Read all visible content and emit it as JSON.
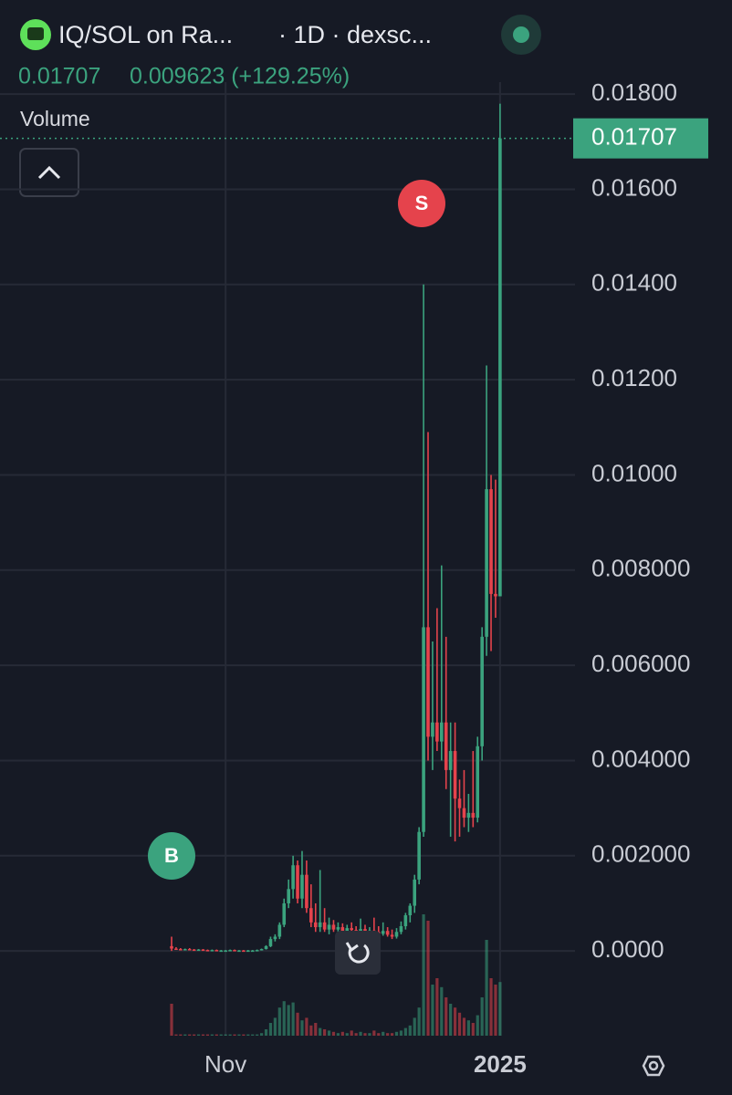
{
  "chart_data": {
    "type": "candlestick",
    "title": "IQ/SOL on Ra...",
    "interval": "· 1D · dexsc...",
    "subtitle_price": "0.01707",
    "subtitle_change": "0.009623 (+129.25%)",
    "volume_label": "Volume",
    "last_price": 0.01707,
    "markers": [
      "B",
      "S"
    ],
    "colors": {
      "up": "#3ba37e",
      "down": "#e5434c"
    },
    "grid": true,
    "ylim": [
      -0.00178,
      0.01806
    ],
    "yticks": [
      {
        "value": 0,
        "label": "0.0000"
      },
      {
        "value": 0.002,
        "label": "0.002000"
      },
      {
        "value": 0.004,
        "label": "0.004000"
      },
      {
        "value": 0.006,
        "label": "0.006000"
      },
      {
        "value": 0.008,
        "label": "0.008000"
      },
      {
        "value": 0.01,
        "label": "0.01000"
      },
      {
        "value": 0.012,
        "label": "0.01200"
      },
      {
        "value": 0.014,
        "label": "0.01400"
      },
      {
        "value": 0.016,
        "label": "0.01600"
      },
      {
        "value": 0.018,
        "label": "0.01800"
      }
    ],
    "categories": [
      null,
      null,
      null,
      null,
      null,
      null,
      null,
      null,
      null,
      null,
      null,
      null,
      "Nov",
      null,
      null,
      null,
      null,
      null,
      null,
      null,
      null,
      null,
      null,
      null,
      null,
      null,
      null,
      null,
      null,
      null,
      null,
      null,
      null,
      null,
      null,
      null,
      null,
      null,
      null,
      null,
      null,
      null,
      null,
      null,
      null,
      null,
      null,
      null,
      null,
      null,
      null,
      null,
      null,
      null,
      null,
      null,
      null,
      null,
      null,
      null,
      null,
      null,
      null,
      null,
      null,
      null,
      null,
      null,
      null,
      null,
      null,
      null,
      null,
      "2025"
    ],
    "open": [
      0.0001,
      5e-05,
      4e-05,
      3e-05,
      4e-05,
      3e-05,
      2e-05,
      3e-05,
      2e-05,
      1e-05,
      2e-05,
      1e-05,
      1e-05,
      1e-05,
      2e-05,
      1e-05,
      1e-05,
      0.0,
      1e-05,
      1e-05,
      2e-05,
      4e-05,
      0.0001,
      0.00025,
      0.0003,
      0.00055,
      0.001,
      0.0013,
      0.0018,
      0.0011,
      0.0016,
      0.0009,
      0.0006,
      0.0005,
      0.0006,
      0.00045,
      0.00055,
      0.00045,
      0.0005,
      0.00042,
      0.00048,
      0.00044,
      0.0004,
      0.00046,
      0.00041,
      0.00043,
      0.0004,
      0.00036,
      0.00042,
      0.00034,
      0.0003,
      0.0004,
      0.00052,
      0.00075,
      0.00095,
      0.0015,
      0.0025,
      0.0068,
      0.0045,
      0.0048,
      0.0044,
      0.0048,
      0.0038,
      0.0042,
      0.0032,
      0.003,
      0.0028,
      0.0029,
      0.0028,
      0.0043,
      0.0066,
      0.0097,
      0.0075,
      0.00745
    ],
    "high": [
      0.0003,
      8e-05,
      6e-05,
      5e-05,
      6e-05,
      4e-05,
      4e-05,
      4e-05,
      3e-05,
      3e-05,
      3e-05,
      2e-05,
      2e-05,
      3e-05,
      3e-05,
      2e-05,
      2e-05,
      2e-05,
      2e-05,
      3e-05,
      5e-05,
      0.00012,
      0.0003,
      0.00035,
      0.0006,
      0.0011,
      0.0015,
      0.002,
      0.0019,
      0.0021,
      0.0019,
      0.0014,
      0.001,
      0.0017,
      0.0009,
      0.0007,
      0.00065,
      0.0006,
      0.00058,
      0.00055,
      0.0006,
      0.00052,
      0.00068,
      0.00055,
      0.0005,
      0.0007,
      0.00052,
      0.0006,
      0.0005,
      0.00045,
      0.00048,
      0.00062,
      0.0008,
      0.001,
      0.0016,
      0.0026,
      0.014,
      0.0109,
      0.0065,
      0.0072,
      0.0081,
      0.0066,
      0.0048,
      0.0048,
      0.0036,
      0.0038,
      0.0033,
      0.0042,
      0.0045,
      0.0068,
      0.0123,
      0.01,
      0.0099,
      0.0178
    ],
    "low": [
      0.0,
      3e-05,
      2e-05,
      2e-05,
      2e-05,
      1e-05,
      1e-05,
      1e-05,
      0.0,
      0.0,
      0.0,
      0.0,
      0.0,
      0.0,
      0.0,
      0.0,
      0.0,
      -1e-05,
      0.0,
      0.0,
      1e-05,
      3e-05,
      8e-05,
      0.0002,
      0.00025,
      0.0005,
      0.0009,
      0.0011,
      0.001,
      0.0009,
      0.0008,
      0.0005,
      0.0004,
      0.0004,
      0.0004,
      0.00035,
      0.0004,
      0.00038,
      0.0004,
      0.00035,
      0.0004,
      0.00036,
      0.00035,
      0.00038,
      0.00034,
      0.00035,
      0.0003,
      0.00032,
      0.0003,
      0.00025,
      0.00026,
      0.00035,
      0.00045,
      0.0006,
      0.0008,
      0.0014,
      0.0024,
      0.004,
      0.0038,
      0.0042,
      0.004,
      0.0034,
      0.0024,
      0.0023,
      0.0024,
      0.0026,
      0.0025,
      0.0026,
      0.0027,
      0.004,
      0.0062,
      0.0063,
      0.007,
      0.00745
    ],
    "close": [
      5e-05,
      4e-05,
      3e-05,
      4e-05,
      3e-05,
      2e-05,
      3e-05,
      2e-05,
      1e-05,
      2e-05,
      1e-05,
      1e-05,
      1e-05,
      2e-05,
      1e-05,
      1e-05,
      0.0,
      1e-05,
      1e-05,
      2e-05,
      4e-05,
      0.0001,
      0.00025,
      0.0003,
      0.00055,
      0.001,
      0.0013,
      0.0018,
      0.0011,
      0.0016,
      0.0009,
      0.0006,
      0.0005,
      0.0006,
      0.00045,
      0.00055,
      0.00045,
      0.0005,
      0.00042,
      0.00048,
      0.00044,
      0.0004,
      0.00046,
      0.00041,
      0.00043,
      0.0004,
      0.00036,
      0.00042,
      0.00034,
      0.0003,
      0.0004,
      0.00052,
      0.00075,
      0.00095,
      0.0015,
      0.0025,
      0.0068,
      0.0045,
      0.0048,
      0.0044,
      0.0048,
      0.0038,
      0.0042,
      0.0032,
      0.003,
      0.0028,
      0.0029,
      0.0028,
      0.0043,
      0.0066,
      0.0097,
      0.0075,
      0.00745,
      0.01707
    ],
    "volume": [
      25,
      1,
      1,
      1,
      1,
      1,
      1,
      1,
      1,
      1,
      1,
      1,
      1,
      1,
      1,
      1,
      1,
      1,
      1,
      1,
      2,
      5,
      10,
      14,
      22,
      27,
      24,
      26,
      18,
      12,
      14,
      8,
      10,
      6,
      5,
      4,
      3,
      2,
      3,
      2,
      4,
      2,
      3,
      2,
      2,
      4,
      2,
      3,
      2,
      2,
      3,
      4,
      6,
      8,
      14,
      22,
      95,
      90,
      40,
      45,
      38,
      30,
      25,
      22,
      18,
      14,
      12,
      10,
      16,
      30,
      75,
      45,
      40,
      42
    ]
  }
}
